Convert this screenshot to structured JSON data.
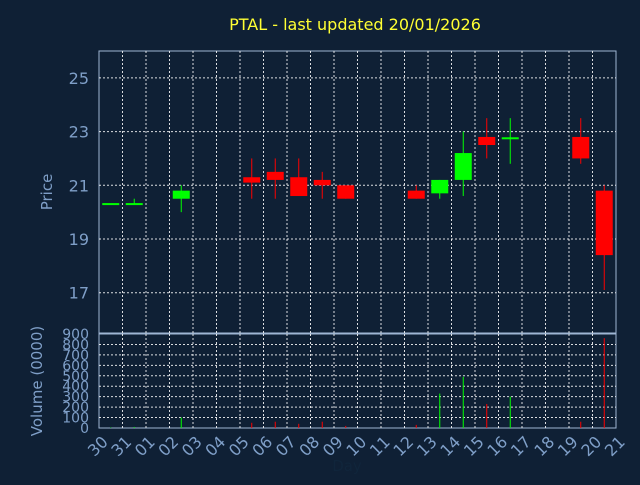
{
  "chart_data": {
    "type": "candlestick",
    "title": "PTAL - last updated 20/01/2026",
    "xlabel": "Day",
    "ylabel": "Price",
    "volume_label": "Volume (0000)",
    "grid": true,
    "x_ticks": [
      "30",
      "31",
      "01",
      "02",
      "03",
      "04",
      "05",
      "06",
      "07",
      "08",
      "09",
      "10",
      "11",
      "12",
      "13",
      "14",
      "15",
      "16",
      "17",
      "18",
      "19",
      "20",
      "21"
    ],
    "price_ylim": [
      15.5,
      26.0
    ],
    "price_ticks": [
      17,
      19,
      21,
      23,
      25
    ],
    "volume_ylim": [
      0,
      900
    ],
    "volume_ticks": [
      0,
      100,
      200,
      300,
      400,
      500,
      600,
      700,
      800,
      900
    ],
    "up_color": "#00ff00",
    "down_color": "#ff0000",
    "candles": [
      {
        "day": "30",
        "i": 0,
        "open": 20.3,
        "high": 20.3,
        "low": 20.3,
        "close": 20.3,
        "volume": 5
      },
      {
        "day": "31",
        "i": 1,
        "open": 20.3,
        "high": 20.5,
        "low": 20.3,
        "close": 20.3,
        "volume": 10
      },
      {
        "day": "02",
        "i": 3,
        "open": 20.5,
        "high": 21.0,
        "low": 20.0,
        "close": 20.8,
        "volume": 100
      },
      {
        "day": "05",
        "i": 6,
        "open": 21.3,
        "high": 22.0,
        "low": 20.5,
        "close": 21.1,
        "volume": 50
      },
      {
        "day": "06",
        "i": 7,
        "open": 21.5,
        "high": 22.0,
        "low": 20.5,
        "close": 21.2,
        "volume": 60
      },
      {
        "day": "07",
        "i": 8,
        "open": 21.3,
        "high": 22.0,
        "low": 20.6,
        "close": 20.6,
        "volume": 40
      },
      {
        "day": "08",
        "i": 9,
        "open": 21.2,
        "high": 21.5,
        "low": 20.5,
        "close": 21.0,
        "volume": 60
      },
      {
        "day": "09",
        "i": 10,
        "open": 21.0,
        "high": 21.0,
        "low": 20.5,
        "close": 20.5,
        "volume": 20
      },
      {
        "day": "12",
        "i": 13,
        "open": 20.8,
        "high": 21.0,
        "low": 20.5,
        "close": 20.5,
        "volume": 30
      },
      {
        "day": "13",
        "i": 14,
        "open": 20.7,
        "high": 21.2,
        "low": 20.5,
        "close": 21.2,
        "volume": 330
      },
      {
        "day": "14",
        "i": 15,
        "open": 21.2,
        "high": 23.0,
        "low": 20.6,
        "close": 22.2,
        "volume": 490
      },
      {
        "day": "15",
        "i": 16,
        "open": 22.8,
        "high": 23.5,
        "low": 22.0,
        "close": 22.5,
        "volume": 230
      },
      {
        "day": "16",
        "i": 17,
        "open": 22.7,
        "high": 23.5,
        "low": 21.8,
        "close": 22.75,
        "volume": 300
      },
      {
        "day": "19",
        "i": 20,
        "open": 22.8,
        "high": 23.5,
        "low": 21.8,
        "close": 22.0,
        "volume": 60
      },
      {
        "day": "20",
        "i": 21,
        "open": 20.8,
        "high": 21.0,
        "low": 17.1,
        "close": 18.4,
        "volume": 860
      }
    ]
  }
}
